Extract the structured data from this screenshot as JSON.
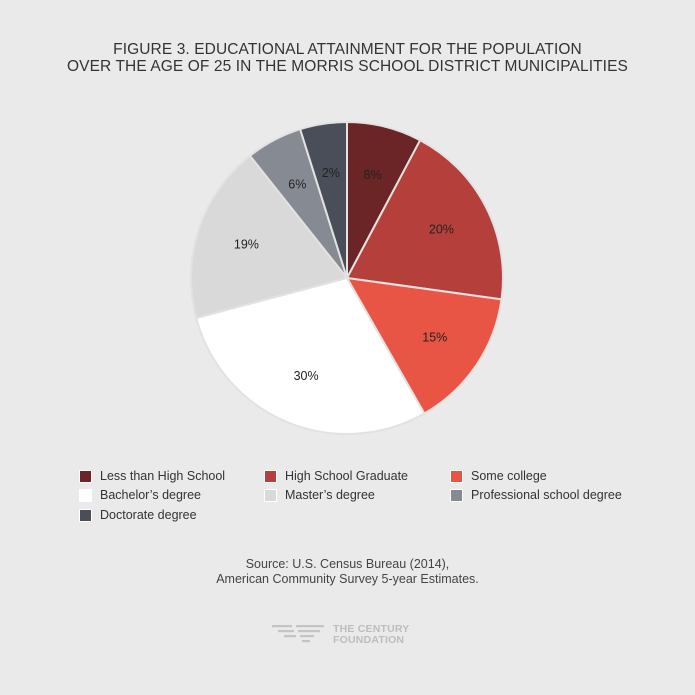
{
  "title": {
    "line1": "FIGURE 3. EDUCATIONAL ATTAINMENT FOR THE POPULATION",
    "line2": "OVER THE AGE OF 25 IN THE MORRIS SCHOOL DISTRICT MUNICIPALITIES"
  },
  "chart_data": {
    "type": "pie",
    "title": "FIGURE 3. EDUCATIONAL ATTAINMENT FOR THE POPULATION OVER THE AGE OF 25 IN THE MORRIS SCHOOL DISTRICT MUNICIPALITIES",
    "start": "12 o'clock, clockwise",
    "legend_position": "bottom",
    "slices": [
      {
        "label": "Less than High School",
        "value": 8,
        "display": "8%",
        "color": "#6b2526"
      },
      {
        "label": "High School Graduate",
        "value": 20,
        "display": "20%",
        "color": "#b5403b"
      },
      {
        "label": "Some college",
        "value": 15,
        "display": "15%",
        "color": "#e85544"
      },
      {
        "label": "Bachelor’s degree",
        "value": 30,
        "display": "30%",
        "color": "#ffffff"
      },
      {
        "label": "Master’s degree",
        "value": 19,
        "display": "19%",
        "color": "#d9d9d9"
      },
      {
        "label": "Professional school degree",
        "value": 6,
        "display": "6%",
        "color": "#868a93"
      },
      {
        "label": "Doctorate degree",
        "value": 2,
        "display": "2%",
        "color": "#4a4e58",
        "display_angle_share": 5
      }
    ]
  },
  "source": {
    "line1": "Source: U.S. Census Bureau (2014),",
    "line2": "American Community Survey 5-year Estimates."
  },
  "logo": {
    "line1": "THE CENTURY",
    "line2": "FOUNDATION"
  }
}
